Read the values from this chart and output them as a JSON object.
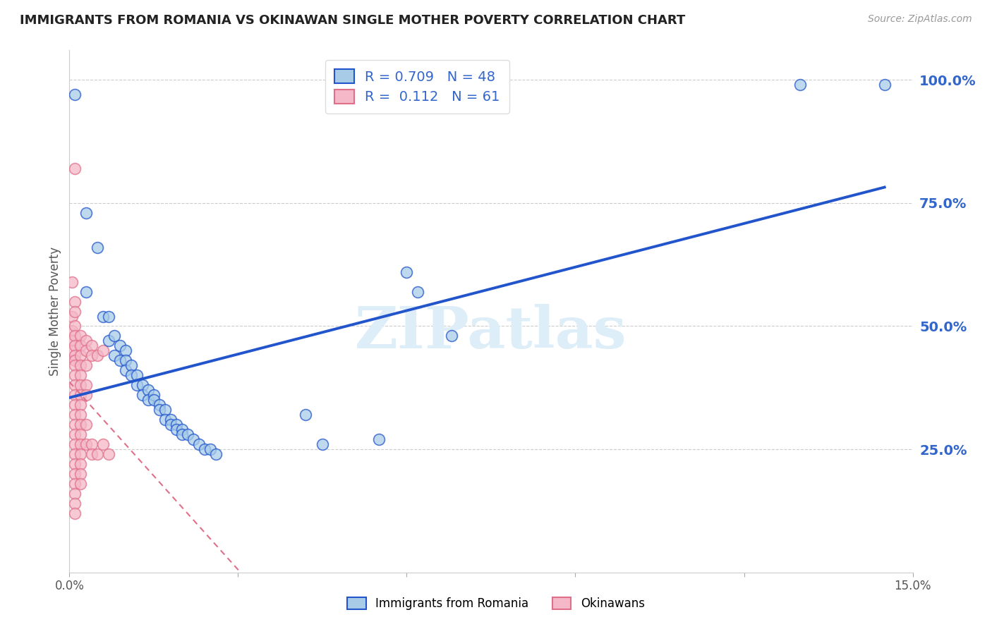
{
  "title": "IMMIGRANTS FROM ROMANIA VS OKINAWAN SINGLE MOTHER POVERTY CORRELATION CHART",
  "source": "Source: ZipAtlas.com",
  "ylabel_left": "Single Mother Poverty",
  "legend_label_blue": "Immigrants from Romania",
  "legend_label_pink": "Okinawans",
  "R_blue": 0.709,
  "N_blue": 48,
  "R_pink": 0.112,
  "N_pink": 61,
  "blue_color": "#a8cce8",
  "pink_color": "#f4b8c8",
  "line_blue": "#2255cc",
  "line_pink": "#e0708a",
  "right_axis_color": "#3366cc",
  "watermark_color": "#ddeef8",
  "x_min": 0.0,
  "x_max": 0.15,
  "y_min": 0.0,
  "y_max": 1.06,
  "background_color": "#ffffff",
  "figsize": [
    14.06,
    8.92
  ],
  "dpi": 100,
  "yticks_right": [
    0.25,
    0.5,
    0.75,
    1.0
  ],
  "ytick_labels_right": [
    "25.0%",
    "50.0%",
    "75.0%",
    "100.0%"
  ],
  "blue_points_x": [
    0.001,
    0.003,
    0.003,
    0.005,
    0.006,
    0.007,
    0.007,
    0.008,
    0.008,
    0.009,
    0.009,
    0.01,
    0.01,
    0.01,
    0.011,
    0.011,
    0.012,
    0.012,
    0.013,
    0.013,
    0.014,
    0.014,
    0.015,
    0.015,
    0.016,
    0.016,
    0.017,
    0.017,
    0.018,
    0.018,
    0.019,
    0.019,
    0.02,
    0.02,
    0.021,
    0.022,
    0.023,
    0.024,
    0.025,
    0.026,
    0.042,
    0.045,
    0.055,
    0.06,
    0.062,
    0.068,
    0.13,
    0.145
  ],
  "blue_points_y": [
    0.97,
    0.73,
    0.57,
    0.66,
    0.52,
    0.52,
    0.47,
    0.48,
    0.44,
    0.46,
    0.43,
    0.45,
    0.43,
    0.41,
    0.42,
    0.4,
    0.4,
    0.38,
    0.38,
    0.36,
    0.37,
    0.35,
    0.36,
    0.35,
    0.34,
    0.33,
    0.33,
    0.31,
    0.31,
    0.3,
    0.3,
    0.29,
    0.29,
    0.28,
    0.28,
    0.27,
    0.26,
    0.25,
    0.25,
    0.24,
    0.32,
    0.26,
    0.27,
    0.61,
    0.57,
    0.48,
    0.99,
    0.99
  ],
  "pink_points_x": [
    0.0005,
    0.0005,
    0.0005,
    0.0005,
    0.0005,
    0.001,
    0.001,
    0.001,
    0.001,
    0.001,
    0.001,
    0.001,
    0.001,
    0.001,
    0.001,
    0.001,
    0.001,
    0.001,
    0.001,
    0.001,
    0.001,
    0.001,
    0.001,
    0.001,
    0.001,
    0.001,
    0.001,
    0.001,
    0.001,
    0.002,
    0.002,
    0.002,
    0.002,
    0.002,
    0.002,
    0.002,
    0.002,
    0.002,
    0.002,
    0.002,
    0.002,
    0.002,
    0.002,
    0.002,
    0.002,
    0.003,
    0.003,
    0.003,
    0.003,
    0.003,
    0.003,
    0.003,
    0.004,
    0.004,
    0.004,
    0.004,
    0.005,
    0.005,
    0.006,
    0.006,
    0.007
  ],
  "pink_points_y": [
    0.59,
    0.52,
    0.49,
    0.47,
    0.45,
    0.82,
    0.55,
    0.53,
    0.5,
    0.48,
    0.46,
    0.44,
    0.43,
    0.42,
    0.4,
    0.38,
    0.36,
    0.34,
    0.32,
    0.3,
    0.28,
    0.26,
    0.24,
    0.22,
    0.2,
    0.18,
    0.16,
    0.14,
    0.12,
    0.48,
    0.46,
    0.44,
    0.42,
    0.4,
    0.38,
    0.36,
    0.34,
    0.32,
    0.3,
    0.28,
    0.26,
    0.24,
    0.22,
    0.2,
    0.18,
    0.47,
    0.45,
    0.42,
    0.38,
    0.36,
    0.3,
    0.26,
    0.46,
    0.44,
    0.26,
    0.24,
    0.44,
    0.24,
    0.45,
    0.26,
    0.24
  ]
}
